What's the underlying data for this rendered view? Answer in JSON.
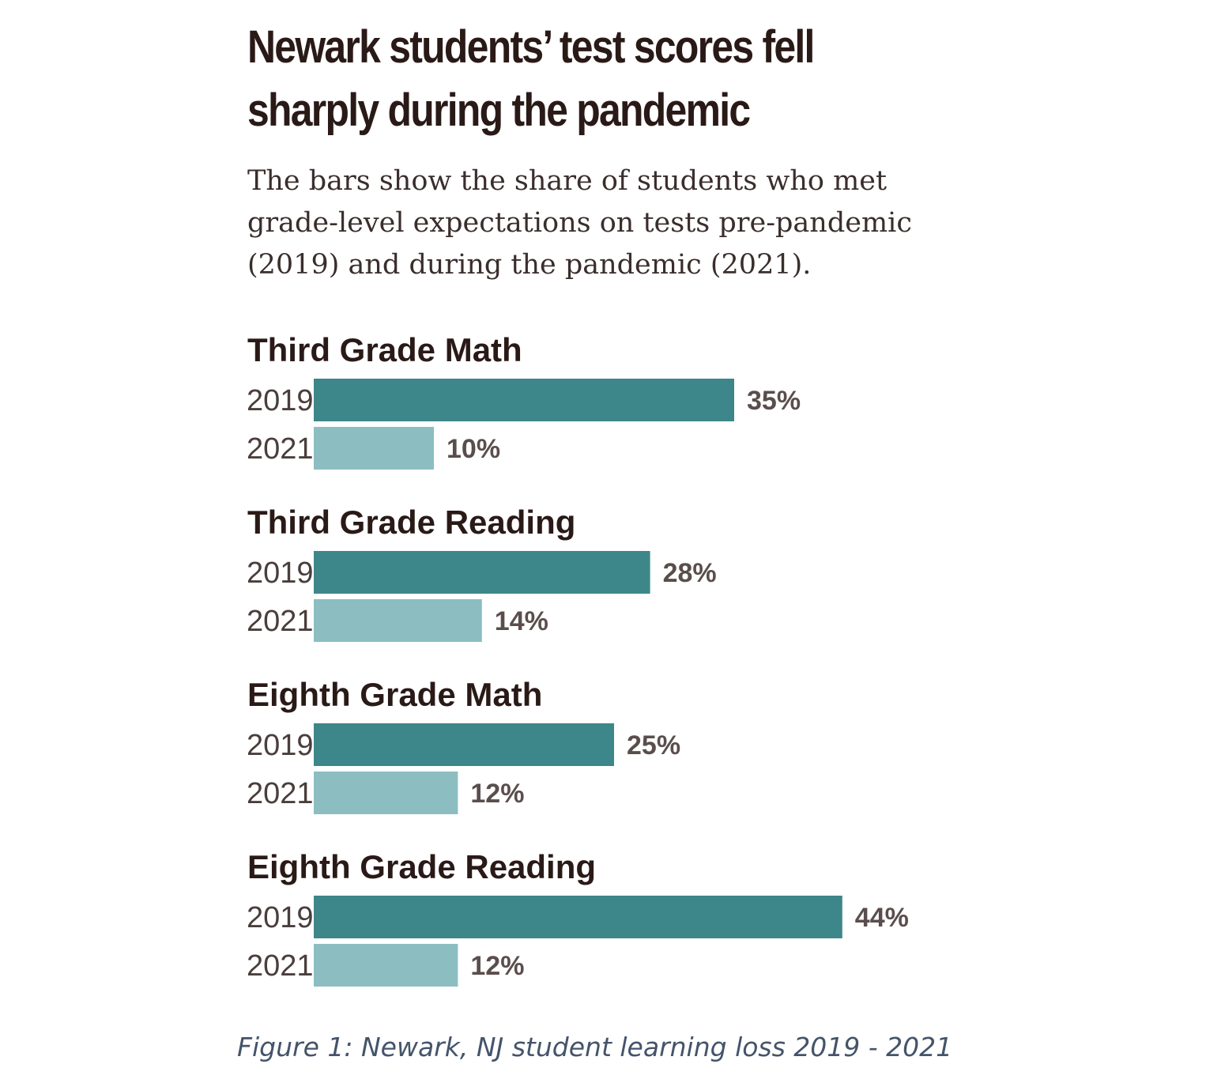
{
  "chart_data": {
    "type": "bar",
    "orientation": "horizontal",
    "title": "Newark students’ test scores fell sharply during the pandemic",
    "subtitle": "The bars show the share of students who met grade-level expectations on tests pre-pandemic (2019) and during the pandemic (2021).",
    "unit": "%",
    "groups": [
      {
        "name": "Third Grade Math",
        "bars": [
          {
            "year": "2019",
            "value": 35,
            "label": "35%"
          },
          {
            "year": "2021",
            "value": 10,
            "label": "10%"
          }
        ]
      },
      {
        "name": "Third Grade Reading",
        "bars": [
          {
            "year": "2019",
            "value": 28,
            "label": "28%"
          },
          {
            "year": "2021",
            "value": 14,
            "label": "14%"
          }
        ]
      },
      {
        "name": "Eighth Grade Math",
        "bars": [
          {
            "year": "2019",
            "value": 25,
            "label": "25%"
          },
          {
            "year": "2021",
            "value": 12,
            "label": "12%"
          }
        ]
      },
      {
        "name": "Eighth Grade Reading",
        "bars": [
          {
            "year": "2019",
            "value": 44,
            "label": "44%"
          },
          {
            "year": "2021",
            "value": 12,
            "label": "12%"
          }
        ]
      }
    ],
    "colors": {
      "2019": "#3d8689",
      "2021": "#8cbec1"
    },
    "grid": false,
    "legend": "none"
  },
  "caption": "Figure 1:  Newark, NJ student learning loss 2019 - 2021"
}
